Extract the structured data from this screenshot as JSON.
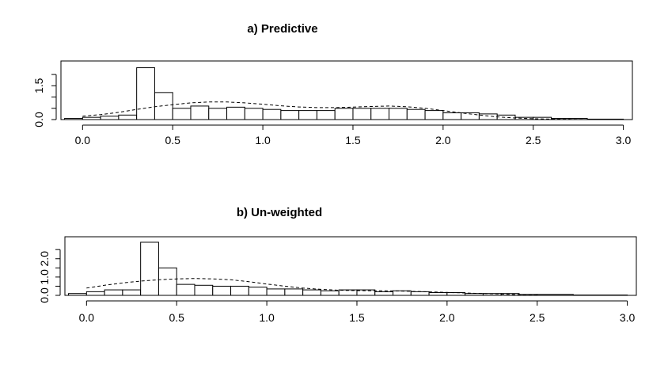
{
  "chart_data": [
    {
      "type": "histogram",
      "title": "a) Predictive",
      "xlabel": "",
      "ylabel": "",
      "xlim": [
        -0.12,
        3.05
      ],
      "ylim": [
        0,
        2.6
      ],
      "x_ticks": [
        "0.0",
        "0.5",
        "1.0",
        "1.5",
        "2.0",
        "2.5",
        "3.0"
      ],
      "y_ticks": [
        "0.0",
        "1.5"
      ],
      "y_tick_values": [
        0,
        0.5,
        1.0,
        1.5,
        2.0
      ],
      "bin_width": 0.1,
      "bins": [
        {
          "x0": -0.1,
          "x1": 0.0,
          "y": 0.05
        },
        {
          "x0": 0.0,
          "x1": 0.1,
          "y": 0.1
        },
        {
          "x0": 0.1,
          "x1": 0.2,
          "y": 0.15
        },
        {
          "x0": 0.2,
          "x1": 0.3,
          "y": 0.2
        },
        {
          "x0": 0.3,
          "x1": 0.4,
          "y": 2.3
        },
        {
          "x0": 0.4,
          "x1": 0.5,
          "y": 1.2
        },
        {
          "x0": 0.5,
          "x1": 0.6,
          "y": 0.5
        },
        {
          "x0": 0.6,
          "x1": 0.7,
          "y": 0.6
        },
        {
          "x0": 0.7,
          "x1": 0.8,
          "y": 0.5
        },
        {
          "x0": 0.8,
          "x1": 0.9,
          "y": 0.55
        },
        {
          "x0": 0.9,
          "x1": 1.0,
          "y": 0.5
        },
        {
          "x0": 1.0,
          "x1": 1.1,
          "y": 0.45
        },
        {
          "x0": 1.1,
          "x1": 1.2,
          "y": 0.4
        },
        {
          "x0": 1.2,
          "x1": 1.3,
          "y": 0.4
        },
        {
          "x0": 1.3,
          "x1": 1.4,
          "y": 0.4
        },
        {
          "x0": 1.4,
          "x1": 1.5,
          "y": 0.5
        },
        {
          "x0": 1.5,
          "x1": 1.6,
          "y": 0.5
        },
        {
          "x0": 1.6,
          "x1": 1.7,
          "y": 0.5
        },
        {
          "x0": 1.7,
          "x1": 1.8,
          "y": 0.5
        },
        {
          "x0": 1.8,
          "x1": 1.9,
          "y": 0.45
        },
        {
          "x0": 1.9,
          "x1": 2.0,
          "y": 0.4
        },
        {
          "x0": 2.0,
          "x1": 2.1,
          "y": 0.3
        },
        {
          "x0": 2.1,
          "x1": 2.2,
          "y": 0.3
        },
        {
          "x0": 2.2,
          "x1": 2.3,
          "y": 0.25
        },
        {
          "x0": 2.3,
          "x1": 2.4,
          "y": 0.2
        },
        {
          "x0": 2.4,
          "x1": 2.5,
          "y": 0.1
        },
        {
          "x0": 2.5,
          "x1": 2.6,
          "y": 0.1
        },
        {
          "x0": 2.6,
          "x1": 2.7,
          "y": 0.05
        },
        {
          "x0": 2.7,
          "x1": 2.8,
          "y": 0.05
        },
        {
          "x0": 2.8,
          "x1": 3.0,
          "y": 0.02
        }
      ],
      "density_curve": {
        "style": "dashed",
        "x": [
          0.0,
          0.1,
          0.2,
          0.3,
          0.4,
          0.5,
          0.6,
          0.7,
          0.8,
          0.9,
          1.0,
          1.1,
          1.2,
          1.3,
          1.4,
          1.5,
          1.6,
          1.7,
          1.8,
          1.9,
          2.0,
          2.1,
          2.2,
          2.3,
          2.4,
          2.5,
          2.6,
          2.7,
          2.8
        ],
        "y": [
          0.15,
          0.22,
          0.32,
          0.45,
          0.57,
          0.66,
          0.74,
          0.78,
          0.78,
          0.74,
          0.68,
          0.61,
          0.56,
          0.53,
          0.53,
          0.55,
          0.58,
          0.6,
          0.57,
          0.5,
          0.4,
          0.3,
          0.2,
          0.12,
          0.07,
          0.04,
          0.02,
          0.01,
          0.0
        ]
      }
    },
    {
      "type": "histogram",
      "title": "b) Un-weighted",
      "xlabel": "",
      "ylabel": "",
      "xlim": [
        -0.12,
        3.05
      ],
      "ylim": [
        0,
        3.2
      ],
      "x_ticks": [
        "0.0",
        "0.5",
        "1.0",
        "1.5",
        "2.0",
        "2.5",
        "3.0"
      ],
      "y_ticks": [
        "0.0",
        "1.0",
        "2.0"
      ],
      "y_tick_values": [
        0,
        0.5,
        1.0,
        1.5,
        2.0,
        2.5
      ],
      "bin_width": 0.1,
      "bins": [
        {
          "x0": -0.1,
          "x1": 0.0,
          "y": 0.1
        },
        {
          "x0": 0.0,
          "x1": 0.1,
          "y": 0.2
        },
        {
          "x0": 0.1,
          "x1": 0.2,
          "y": 0.3
        },
        {
          "x0": 0.2,
          "x1": 0.3,
          "y": 0.3
        },
        {
          "x0": 0.3,
          "x1": 0.4,
          "y": 2.9
        },
        {
          "x0": 0.4,
          "x1": 0.5,
          "y": 1.5
        },
        {
          "x0": 0.5,
          "x1": 0.6,
          "y": 0.6
        },
        {
          "x0": 0.6,
          "x1": 0.7,
          "y": 0.55
        },
        {
          "x0": 0.7,
          "x1": 0.8,
          "y": 0.5
        },
        {
          "x0": 0.8,
          "x1": 0.9,
          "y": 0.5
        },
        {
          "x0": 0.9,
          "x1": 1.0,
          "y": 0.45
        },
        {
          "x0": 1.0,
          "x1": 1.1,
          "y": 0.35
        },
        {
          "x0": 1.1,
          "x1": 1.2,
          "y": 0.35
        },
        {
          "x0": 1.2,
          "x1": 1.3,
          "y": 0.3
        },
        {
          "x0": 1.3,
          "x1": 1.4,
          "y": 0.25
        },
        {
          "x0": 1.4,
          "x1": 1.5,
          "y": 0.3
        },
        {
          "x0": 1.5,
          "x1": 1.6,
          "y": 0.3
        },
        {
          "x0": 1.6,
          "x1": 1.7,
          "y": 0.2
        },
        {
          "x0": 1.7,
          "x1": 1.8,
          "y": 0.25
        },
        {
          "x0": 1.8,
          "x1": 1.9,
          "y": 0.2
        },
        {
          "x0": 1.9,
          "x1": 2.0,
          "y": 0.15
        },
        {
          "x0": 2.0,
          "x1": 2.1,
          "y": 0.15
        },
        {
          "x0": 2.1,
          "x1": 2.2,
          "y": 0.1
        },
        {
          "x0": 2.2,
          "x1": 2.3,
          "y": 0.1
        },
        {
          "x0": 2.3,
          "x1": 2.4,
          "y": 0.1
        },
        {
          "x0": 2.4,
          "x1": 2.5,
          "y": 0.05
        },
        {
          "x0": 2.5,
          "x1": 2.7,
          "y": 0.05
        },
        {
          "x0": 2.7,
          "x1": 3.0,
          "y": 0.02
        }
      ],
      "density_curve": {
        "style": "dashed",
        "x": [
          0.0,
          0.1,
          0.2,
          0.3,
          0.4,
          0.5,
          0.6,
          0.7,
          0.8,
          0.9,
          1.0,
          1.1,
          1.2,
          1.3,
          1.4,
          1.5,
          1.6,
          1.7,
          1.8,
          1.9,
          2.0,
          2.1,
          2.2,
          2.3,
          2.4,
          2.5
        ],
        "y": [
          0.4,
          0.55,
          0.68,
          0.78,
          0.85,
          0.9,
          0.92,
          0.9,
          0.85,
          0.75,
          0.62,
          0.5,
          0.4,
          0.33,
          0.28,
          0.26,
          0.25,
          0.24,
          0.22,
          0.19,
          0.16,
          0.13,
          0.1,
          0.07,
          0.04,
          0.02
        ]
      }
    }
  ]
}
